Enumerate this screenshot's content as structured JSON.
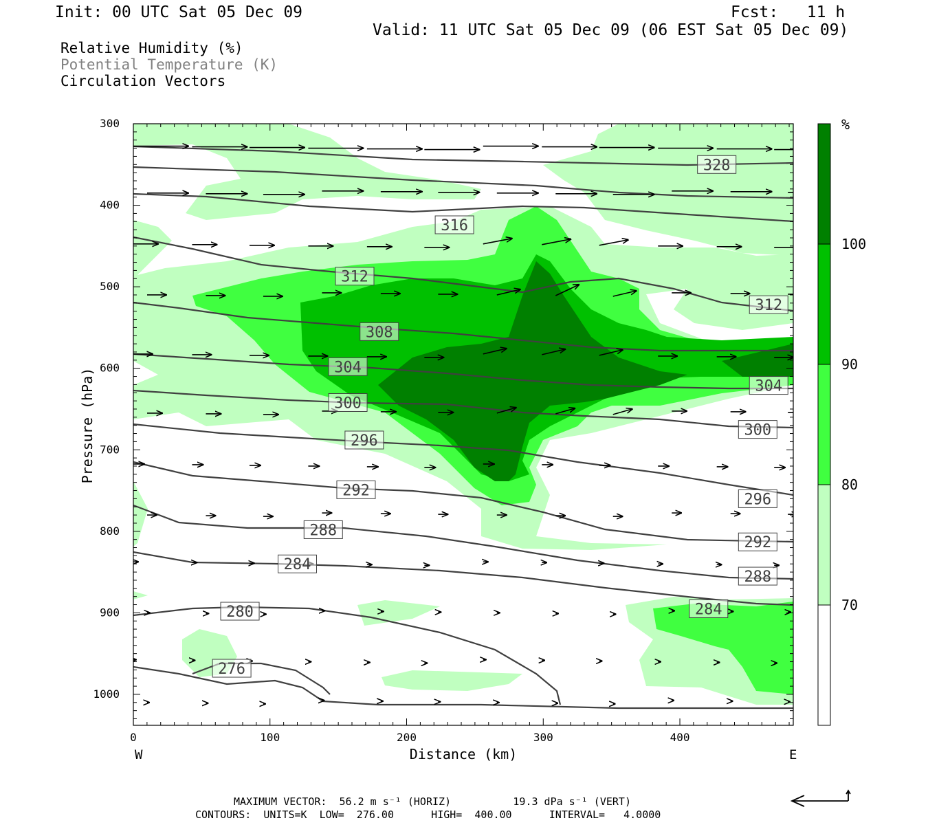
{
  "header": {
    "init": "Init: 00 UTC Sat 05 Dec 09",
    "fcst": "Fcst:   11 h",
    "valid": "Valid: 11 UTC Sat 05 Dec 09 (06 EST Sat 05 Dec 09)"
  },
  "legend": {
    "rh": "Relative Humidity (%)",
    "theta": "Potential Temperature (K)",
    "vectors": "Circulation Vectors"
  },
  "footer": {
    "max_vector": "MAXIMUM VECTOR:  56.2 m s⁻¹ (HORIZ)          19.3 dPa s⁻¹ (VERT)",
    "contours": "CONTOURS:  UNITS=K  LOW=  276.00      HIGH=  400.00      INTERVAL=   4.0000"
  },
  "colors": {
    "rh70": "#c0ffc0",
    "rh80": "#40ff40",
    "rh90": "#00c000",
    "rh100": "#008000",
    "contour": "#404040"
  },
  "chart_data": {
    "type": "heatmap",
    "xlabel": "Distance (km)",
    "ylabel": "Pressure (hPa)",
    "x_ticks": [
      "0",
      "100",
      "200",
      "300",
      "400"
    ],
    "y_ticks": [
      "300",
      "400",
      "500",
      "600",
      "700",
      "800",
      "900",
      "1000"
    ],
    "xlim": [
      0,
      483
    ],
    "ylim": [
      1038,
      300
    ],
    "x_end_labels": {
      "left": "W",
      "right": "E"
    },
    "colorbar": {
      "unit": "%",
      "levels": [
        "70",
        "80",
        "90",
        "100"
      ]
    },
    "contour_labels": [
      {
        "value": "328",
        "x": 427,
        "p": 350
      },
      {
        "value": "316",
        "x": 235,
        "p": 424
      },
      {
        "value": "312",
        "x": 162,
        "p": 487
      },
      {
        "value": "312",
        "x": 465,
        "p": 522
      },
      {
        "value": "308",
        "x": 180,
        "p": 555
      },
      {
        "value": "304",
        "x": 157,
        "p": 598
      },
      {
        "value": "304",
        "x": 465,
        "p": 621
      },
      {
        "value": "300",
        "x": 157,
        "p": 642
      },
      {
        "value": "300",
        "x": 457,
        "p": 675
      },
      {
        "value": "296",
        "x": 169,
        "p": 688
      },
      {
        "value": "296",
        "x": 457,
        "p": 760
      },
      {
        "value": "292",
        "x": 163,
        "p": 749
      },
      {
        "value": "292",
        "x": 457,
        "p": 813
      },
      {
        "value": "288",
        "x": 139,
        "p": 798
      },
      {
        "value": "288",
        "x": 457,
        "p": 855
      },
      {
        "value": "284",
        "x": 120,
        "p": 840
      },
      {
        "value": "284",
        "x": 421,
        "p": 895
      },
      {
        "value": "280",
        "x": 78,
        "p": 898
      },
      {
        "value": "276",
        "x": 72,
        "p": 968
      }
    ]
  }
}
